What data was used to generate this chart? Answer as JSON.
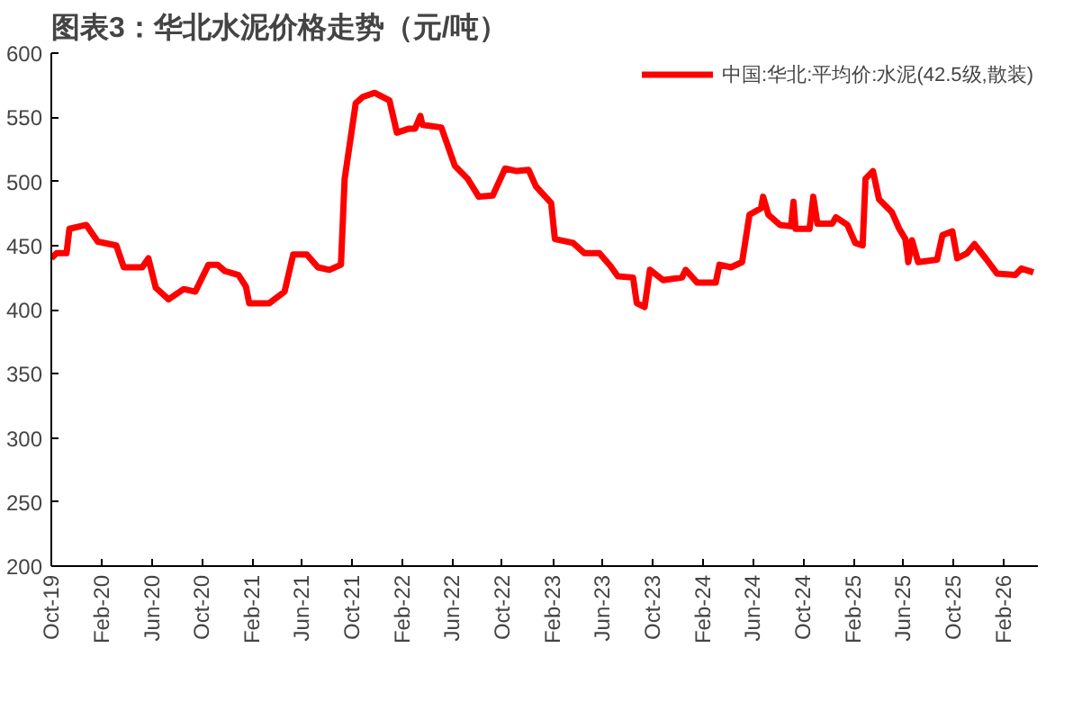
{
  "chart_data": {
    "type": "line",
    "title": "图表3：华北水泥价格走势（元/吨）",
    "x": [
      "2019-10-01",
      "2019-10-14",
      "2019-11-07",
      "2019-11-14",
      "2019-12-25",
      "2020-01-22",
      "2020-03-07",
      "2020-03-25",
      "2020-05-09",
      "2020-05-24",
      "2020-06-11",
      "2020-07-12",
      "2020-08-18",
      "2020-09-15",
      "2020-10-17",
      "2020-11-08",
      "2020-11-26",
      "2020-12-29",
      "2021-01-16",
      "2021-01-24",
      "2021-03-14",
      "2021-04-20",
      "2021-05-11",
      "2021-06-13",
      "2021-07-10",
      "2021-08-07",
      "2021-09-04",
      "2021-09-13",
      "2021-10-10",
      "2021-10-28",
      "2021-11-25",
      "2021-12-31",
      "2022-01-18",
      "2022-02-15",
      "2022-03-03",
      "2022-03-16",
      "2022-03-21",
      "2022-05-06",
      "2022-06-08",
      "2022-07-09",
      "2022-08-05",
      "2022-09-08",
      "2022-10-08",
      "2022-11-05",
      "2022-12-04",
      "2022-12-22",
      "2023-01-28",
      "2023-02-06",
      "2023-03-22",
      "2023-04-19",
      "2023-05-25",
      "2023-06-21",
      "2023-07-09",
      "2023-08-15",
      "2023-08-24",
      "2023-09-12",
      "2023-09-25",
      "2023-10-27",
      "2023-12-12",
      "2023-12-21",
      "2024-01-18",
      "2024-03-03",
      "2024-03-12",
      "2024-04-09",
      "2024-05-06",
      "2024-05-24",
      "2024-06-21",
      "2024-06-26",
      "2024-07-09",
      "2024-08-06",
      "2024-09-02",
      "2024-09-08",
      "2024-09-13",
      "2024-10-17",
      "2024-10-26",
      "2024-11-05",
      "2024-12-11",
      "2024-12-20",
      "2025-01-17",
      "2025-02-05",
      "2025-02-23",
      "2025-03-02",
      "2025-03-20",
      "2025-04-04",
      "2025-05-05",
      "2025-05-23",
      "2025-06-07",
      "2025-06-14",
      "2025-06-23",
      "2025-07-08",
      "2025-08-23",
      "2025-09-05",
      "2025-09-29",
      "2025-10-11",
      "2025-11-04",
      "2025-11-22",
      "2025-12-19",
      "2026-01-16",
      "2026-03-01",
      "2026-03-16",
      "2026-04-14"
    ],
    "series": [
      {
        "name": "中国:华北:平均价:水泥(42.5级,散装)",
        "color": "#ff0000",
        "values": [
          440,
          444,
          444,
          463,
          466,
          453,
          450,
          433,
          433,
          440,
          417,
          408,
          416,
          414,
          435,
          435,
          430,
          427,
          418,
          405,
          405,
          414,
          443,
          443,
          433,
          431,
          435,
          502,
          561,
          566,
          569,
          563,
          538,
          541,
          541,
          551,
          544,
          542,
          512,
          502,
          488,
          489,
          510,
          508,
          509,
          496,
          483,
          455,
          452,
          444,
          444,
          434,
          426,
          425,
          405,
          402,
          431,
          423,
          425,
          431,
          421,
          421,
          435,
          433,
          437,
          474,
          479,
          488,
          474,
          466,
          465,
          484,
          463,
          463,
          488,
          467,
          467,
          472,
          466,
          452,
          450,
          502,
          508,
          486,
          476,
          463,
          455,
          437,
          454,
          437,
          439,
          458,
          461,
          440,
          444,
          451,
          440,
          428,
          427,
          432,
          429
        ]
      }
    ],
    "xlim": [
      "2019-10-01",
      "2026-04-25"
    ],
    "xticks": [
      {
        "value": "2019-10",
        "label": "Oct-19"
      },
      {
        "value": "2020-02",
        "label": "Feb-20"
      },
      {
        "value": "2020-06",
        "label": "Jun-20"
      },
      {
        "value": "2020-10",
        "label": "Oct-20"
      },
      {
        "value": "2021-02",
        "label": "Feb-21"
      },
      {
        "value": "2021-06",
        "label": "Jun-21"
      },
      {
        "value": "2021-10",
        "label": "Oct-21"
      },
      {
        "value": "2022-02",
        "label": "Feb-22"
      },
      {
        "value": "2022-06",
        "label": "Jun-22"
      },
      {
        "value": "2022-10",
        "label": "Oct-22"
      },
      {
        "value": "2023-02",
        "label": "Feb-23"
      },
      {
        "value": "2023-06",
        "label": "Jun-23"
      },
      {
        "value": "2023-10",
        "label": "Oct-23"
      },
      {
        "value": "2024-02",
        "label": "Feb-24"
      },
      {
        "value": "2024-06",
        "label": "Jun-24"
      },
      {
        "value": "2024-10",
        "label": "Oct-24"
      },
      {
        "value": "2025-02",
        "label": "Feb-25"
      },
      {
        "value": "2025-06",
        "label": "Jun-25"
      },
      {
        "value": "2025-10",
        "label": "Oct-25"
      },
      {
        "value": "2026-02",
        "label": "Feb-26"
      }
    ],
    "ylim": [
      200,
      600
    ],
    "yticks": [
      200,
      250,
      300,
      350,
      400,
      450,
      500,
      550,
      600
    ],
    "grid": false,
    "legend": "top right",
    "marker": "none",
    "line_style": "solid"
  }
}
